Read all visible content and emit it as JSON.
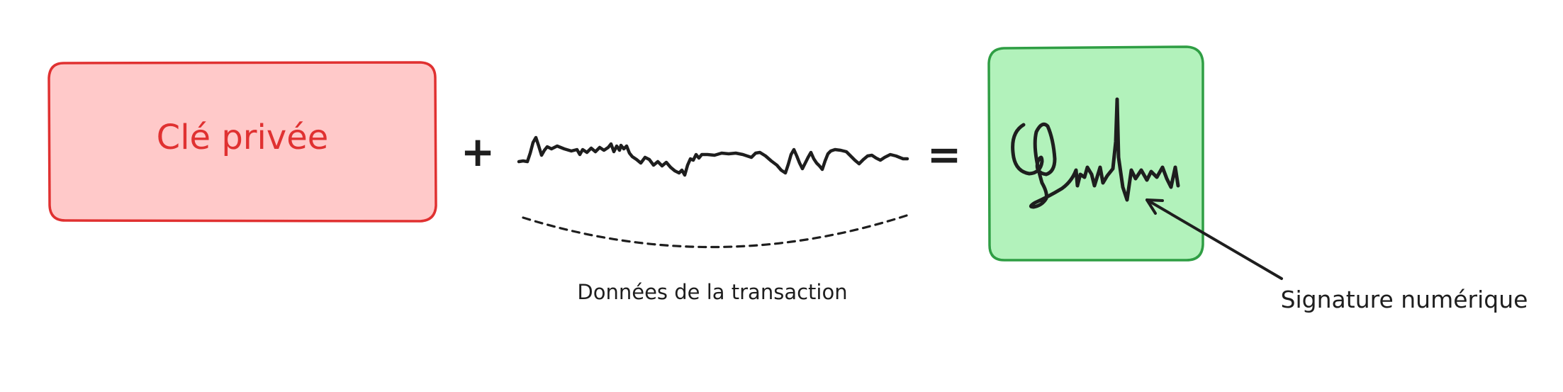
{
  "private_key": {
    "label": "Clé privée",
    "fill_color": "#ffc9c9",
    "stroke_color": "#e03131"
  },
  "operators": {
    "plus": "+",
    "equals": "="
  },
  "transaction": {
    "label": "Données de la transaction"
  },
  "signature": {
    "fill_color": "#b2f2bb",
    "stroke_color": "#2f9e44",
    "label": "Signature numérique"
  },
  "ink_color": "#1e1e1e"
}
